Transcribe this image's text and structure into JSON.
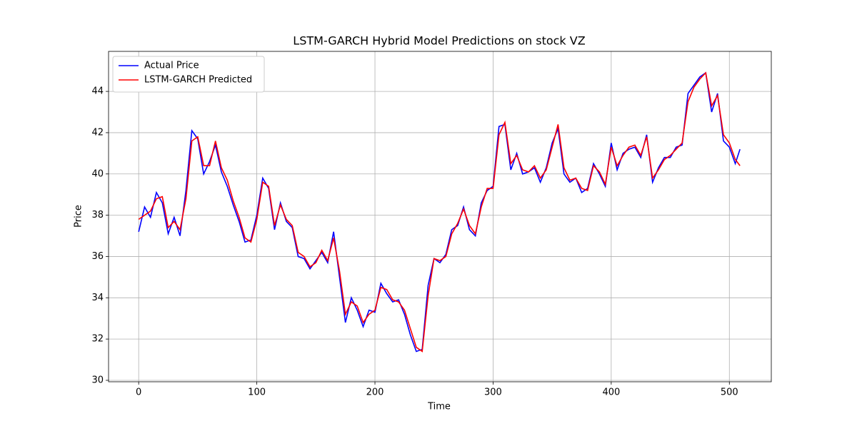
{
  "chart_data": {
    "type": "line",
    "title": "LSTM-GARCH Hybrid Model Predictions on stock VZ",
    "x_label": "Time",
    "y_label": "Price",
    "x": [
      0,
      5,
      10,
      15,
      20,
      25,
      30,
      35,
      40,
      45,
      50,
      55,
      60,
      65,
      70,
      75,
      80,
      85,
      90,
      95,
      100,
      105,
      110,
      115,
      120,
      125,
      130,
      135,
      140,
      145,
      150,
      155,
      160,
      165,
      170,
      175,
      180,
      185,
      190,
      195,
      200,
      205,
      210,
      215,
      220,
      225,
      230,
      235,
      240,
      245,
      250,
      255,
      260,
      265,
      270,
      275,
      280,
      285,
      290,
      295,
      300,
      305,
      310,
      315,
      320,
      325,
      330,
      335,
      340,
      345,
      350,
      355,
      360,
      365,
      370,
      375,
      380,
      385,
      390,
      395,
      400,
      405,
      410,
      415,
      420,
      425,
      430,
      435,
      440,
      445,
      450,
      455,
      460,
      465,
      470,
      475,
      480,
      485,
      490,
      495,
      500,
      505,
      509
    ],
    "series": [
      {
        "name": "Actual Price",
        "color": "#0000ff",
        "values": [
          37.2,
          38.4,
          37.9,
          39.1,
          38.6,
          37.1,
          37.9,
          37.0,
          39.2,
          42.1,
          41.7,
          40.0,
          40.6,
          41.4,
          40.1,
          39.4,
          38.5,
          37.7,
          36.7,
          36.8,
          38.0,
          39.8,
          39.3,
          37.3,
          38.6,
          37.7,
          37.4,
          36.0,
          35.9,
          35.4,
          35.8,
          36.2,
          35.7,
          37.2,
          35.0,
          32.8,
          34.0,
          33.4,
          32.6,
          33.4,
          33.3,
          34.7,
          34.2,
          33.8,
          33.9,
          33.2,
          32.2,
          31.4,
          31.5,
          34.6,
          35.9,
          35.7,
          36.1,
          37.3,
          37.5,
          38.4,
          37.3,
          37.0,
          38.6,
          39.2,
          39.4,
          42.3,
          42.4,
          40.2,
          41.0,
          40.0,
          40.1,
          40.3,
          39.6,
          40.3,
          41.5,
          42.2,
          40.0,
          39.6,
          39.8,
          39.1,
          39.3,
          40.5,
          40.0,
          39.4,
          41.5,
          40.2,
          41.0,
          41.2,
          41.3,
          40.8,
          41.9,
          39.6,
          40.3,
          40.8,
          40.8,
          41.3,
          41.4,
          43.9,
          44.3,
          44.7,
          44.9,
          43.0,
          43.9,
          41.6,
          41.3,
          40.5,
          41.2
        ]
      },
      {
        "name": "LSTM-GARCH Predicted",
        "color": "#ff0000",
        "values": [
          37.8,
          38.0,
          38.2,
          38.8,
          38.9,
          37.4,
          37.7,
          37.3,
          38.8,
          41.6,
          41.8,
          40.4,
          40.4,
          41.6,
          40.3,
          39.7,
          38.7,
          37.9,
          36.9,
          36.7,
          37.8,
          39.6,
          39.4,
          37.5,
          38.5,
          37.8,
          37.5,
          36.2,
          36.0,
          35.5,
          35.7,
          36.3,
          35.8,
          36.9,
          35.3,
          33.2,
          33.8,
          33.6,
          32.8,
          33.2,
          33.4,
          34.5,
          34.4,
          33.9,
          33.8,
          33.4,
          32.5,
          31.6,
          31.4,
          34.1,
          35.9,
          35.8,
          36.0,
          37.1,
          37.6,
          38.3,
          37.5,
          37.1,
          38.4,
          39.3,
          39.3,
          41.9,
          42.5,
          40.5,
          40.9,
          40.2,
          40.1,
          40.4,
          39.8,
          40.2,
          41.3,
          42.4,
          40.3,
          39.7,
          39.8,
          39.3,
          39.2,
          40.4,
          40.1,
          39.5,
          41.3,
          40.4,
          40.9,
          41.3,
          41.4,
          40.9,
          41.8,
          39.8,
          40.2,
          40.7,
          40.9,
          41.2,
          41.5,
          43.5,
          44.2,
          44.6,
          44.9,
          43.3,
          43.8,
          41.9,
          41.5,
          40.7,
          40.4
        ]
      }
    ],
    "xlim": [
      -25.5,
      535.5
    ],
    "ylim": [
      29.93,
      45.94
    ],
    "xticks": [
      0,
      100,
      200,
      300,
      400,
      500
    ],
    "yticks": [
      30,
      32,
      34,
      36,
      38,
      40,
      42,
      44
    ],
    "grid": true,
    "legend": "upper left"
  }
}
